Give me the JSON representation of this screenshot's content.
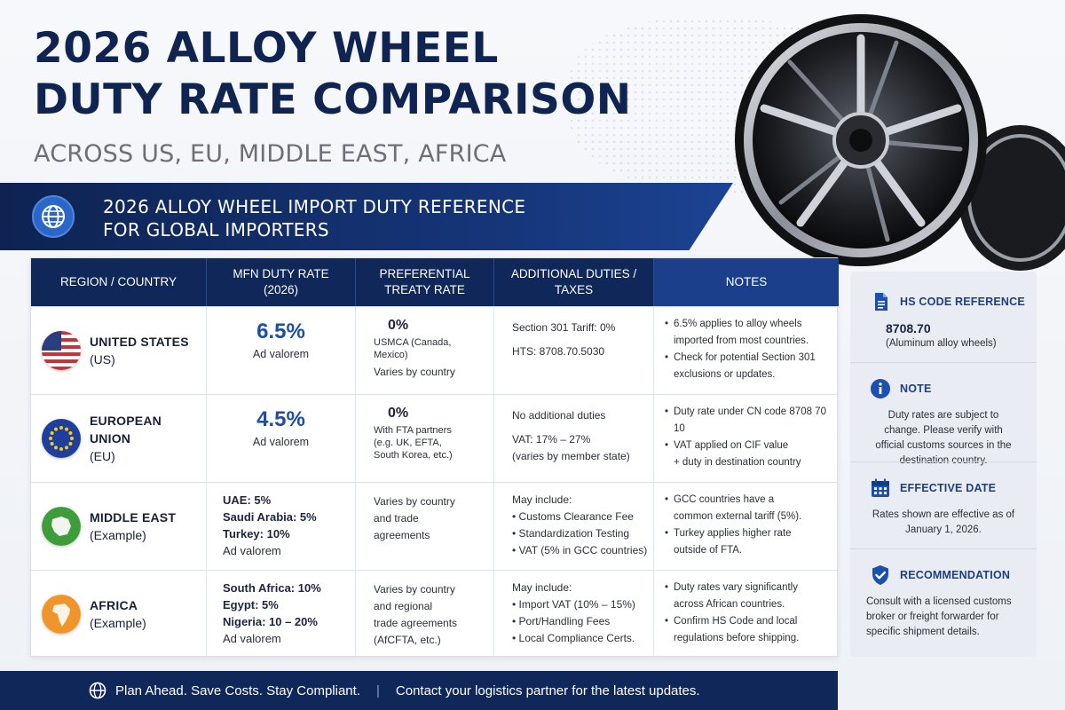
{
  "header": {
    "title_line1": "2026 ALLOY WHEEL",
    "title_line2": "DUTY RATE COMPARISON",
    "subtitle": "ACROSS US, EU, MIDDLE EAST, AFRICA"
  },
  "banner": {
    "line1": "2026 ALLOY WHEEL IMPORT DUTY REFERENCE",
    "line2": "FOR GLOBAL IMPORTERS",
    "icon": "globe-icon"
  },
  "table": {
    "headers": {
      "region": "REGION / COUNTRY",
      "mfn_line1": "MFN DUTY RATE",
      "mfn_line2": "(2026)",
      "pref_line1": "PREFERENTIAL",
      "pref_line2": "TREATY RATE",
      "addl_line1": "ADDITIONAL DUTIES /",
      "addl_line2": "TAXES",
      "notes": "NOTES"
    },
    "rows": [
      {
        "region_name": "UNITED STATES",
        "region_sub": "(US)",
        "mfn_rate": "6.5%",
        "mfn_sub": "Ad valorem",
        "pref_rate": "0%",
        "pref_line1": "USMCA (Canada,",
        "pref_line2": "Mexico)",
        "pref_line3": "Varies by country",
        "addl_line1": "Section 301 Tariff: 0%",
        "addl_line2": "HTS: 8708.70.5030",
        "note1_a": "6.5% applies to alloy wheels",
        "note1_b": "imported from most countries.",
        "note2_a": "Check for potential Section 301",
        "note2_b": "exclusions or updates."
      },
      {
        "region_name": "EUROPEAN UNION",
        "region_sub": "(EU)",
        "mfn_rate": "4.5%",
        "mfn_sub": "Ad valorem",
        "pref_rate": "0%",
        "pref_line1": "With FTA partners",
        "pref_line2": "(e.g. UK, EFTA,",
        "pref_line3": "South Korea, etc.)",
        "addl_line1": "No additional duties",
        "addl_line2": "VAT: 17% – 27%",
        "addl_line3": "(varies by member state)",
        "note1_a": "Duty rate under CN code 8708 70 10",
        "note2_a": "VAT applied on CIF value",
        "note2_b": "+ duty in destination country"
      },
      {
        "region_name": "MIDDLE EAST",
        "region_sub": "(Example)",
        "mfn_line1": "UAE: 5%",
        "mfn_line2": "Saudi Arabia: 5%",
        "mfn_line3": "Turkey: 10%",
        "mfn_sub": "Ad valorem",
        "pref_line1": "Varies by country",
        "pref_line2": "and trade",
        "pref_line3": "agreements",
        "addl_head": "May include:",
        "addl_item1": "Customs Clearance Fee",
        "addl_item2": "Standardization Testing",
        "addl_item3": "VAT (5% in GCC countries)",
        "note1_a": "GCC countries have a",
        "note1_b": "common external tariff (5%).",
        "note2_a": "Turkey applies higher rate",
        "note2_b": "outside of FTA."
      },
      {
        "region_name": "AFRICA",
        "region_sub": "(Example)",
        "mfn_line1": "South Africa: 10%",
        "mfn_line2": "Egypt: 5%",
        "mfn_line3": "Nigeria: 10 – 20%",
        "mfn_sub": "Ad valorem",
        "pref_line1": "Varies by country",
        "pref_line2": "and regional",
        "pref_line3": "trade agreements",
        "pref_line4": "(AfCFTA, etc.)",
        "addl_head": "May include:",
        "addl_item1": "Import VAT (10% – 15%)",
        "addl_item2": "Port/Handling Fees",
        "addl_item3": "Local Compliance Certs.",
        "note1_a": "Duty rates vary significantly",
        "note1_b": "across African countries.",
        "note2_a": "Confirm HS Code and local",
        "note2_b": "regulations before shipping."
      }
    ]
  },
  "sidebar": {
    "hs": {
      "title": "HS CODE REFERENCE",
      "code": "8708.70",
      "desc": "(Aluminum alloy wheels)",
      "icon": "document-icon"
    },
    "note": {
      "title": "NOTE",
      "body": "Duty rates are subject to change. Please verify with official customs sources in the destination country.",
      "icon": "info-icon"
    },
    "effective": {
      "title": "EFFECTIVE DATE",
      "body": "Rates shown are effective as of January 1, 2026.",
      "icon": "calendar-icon"
    },
    "recommendation": {
      "title": "RECOMMENDATION",
      "body": "Consult with a licensed customs broker or freight forwarder for specific shipment details.",
      "icon": "shield-check-icon"
    }
  },
  "footer": {
    "tagline": "Plan Ahead. Save Costs. Stay Compliant.",
    "separator": "|",
    "contact": "Contact your logistics partner for the latest updates."
  },
  "colors": {
    "navy": "#10275a",
    "accent_blue": "#1c4ea6",
    "title_navy": "#0f2451",
    "gray_subtitle": "#6b6f78"
  }
}
